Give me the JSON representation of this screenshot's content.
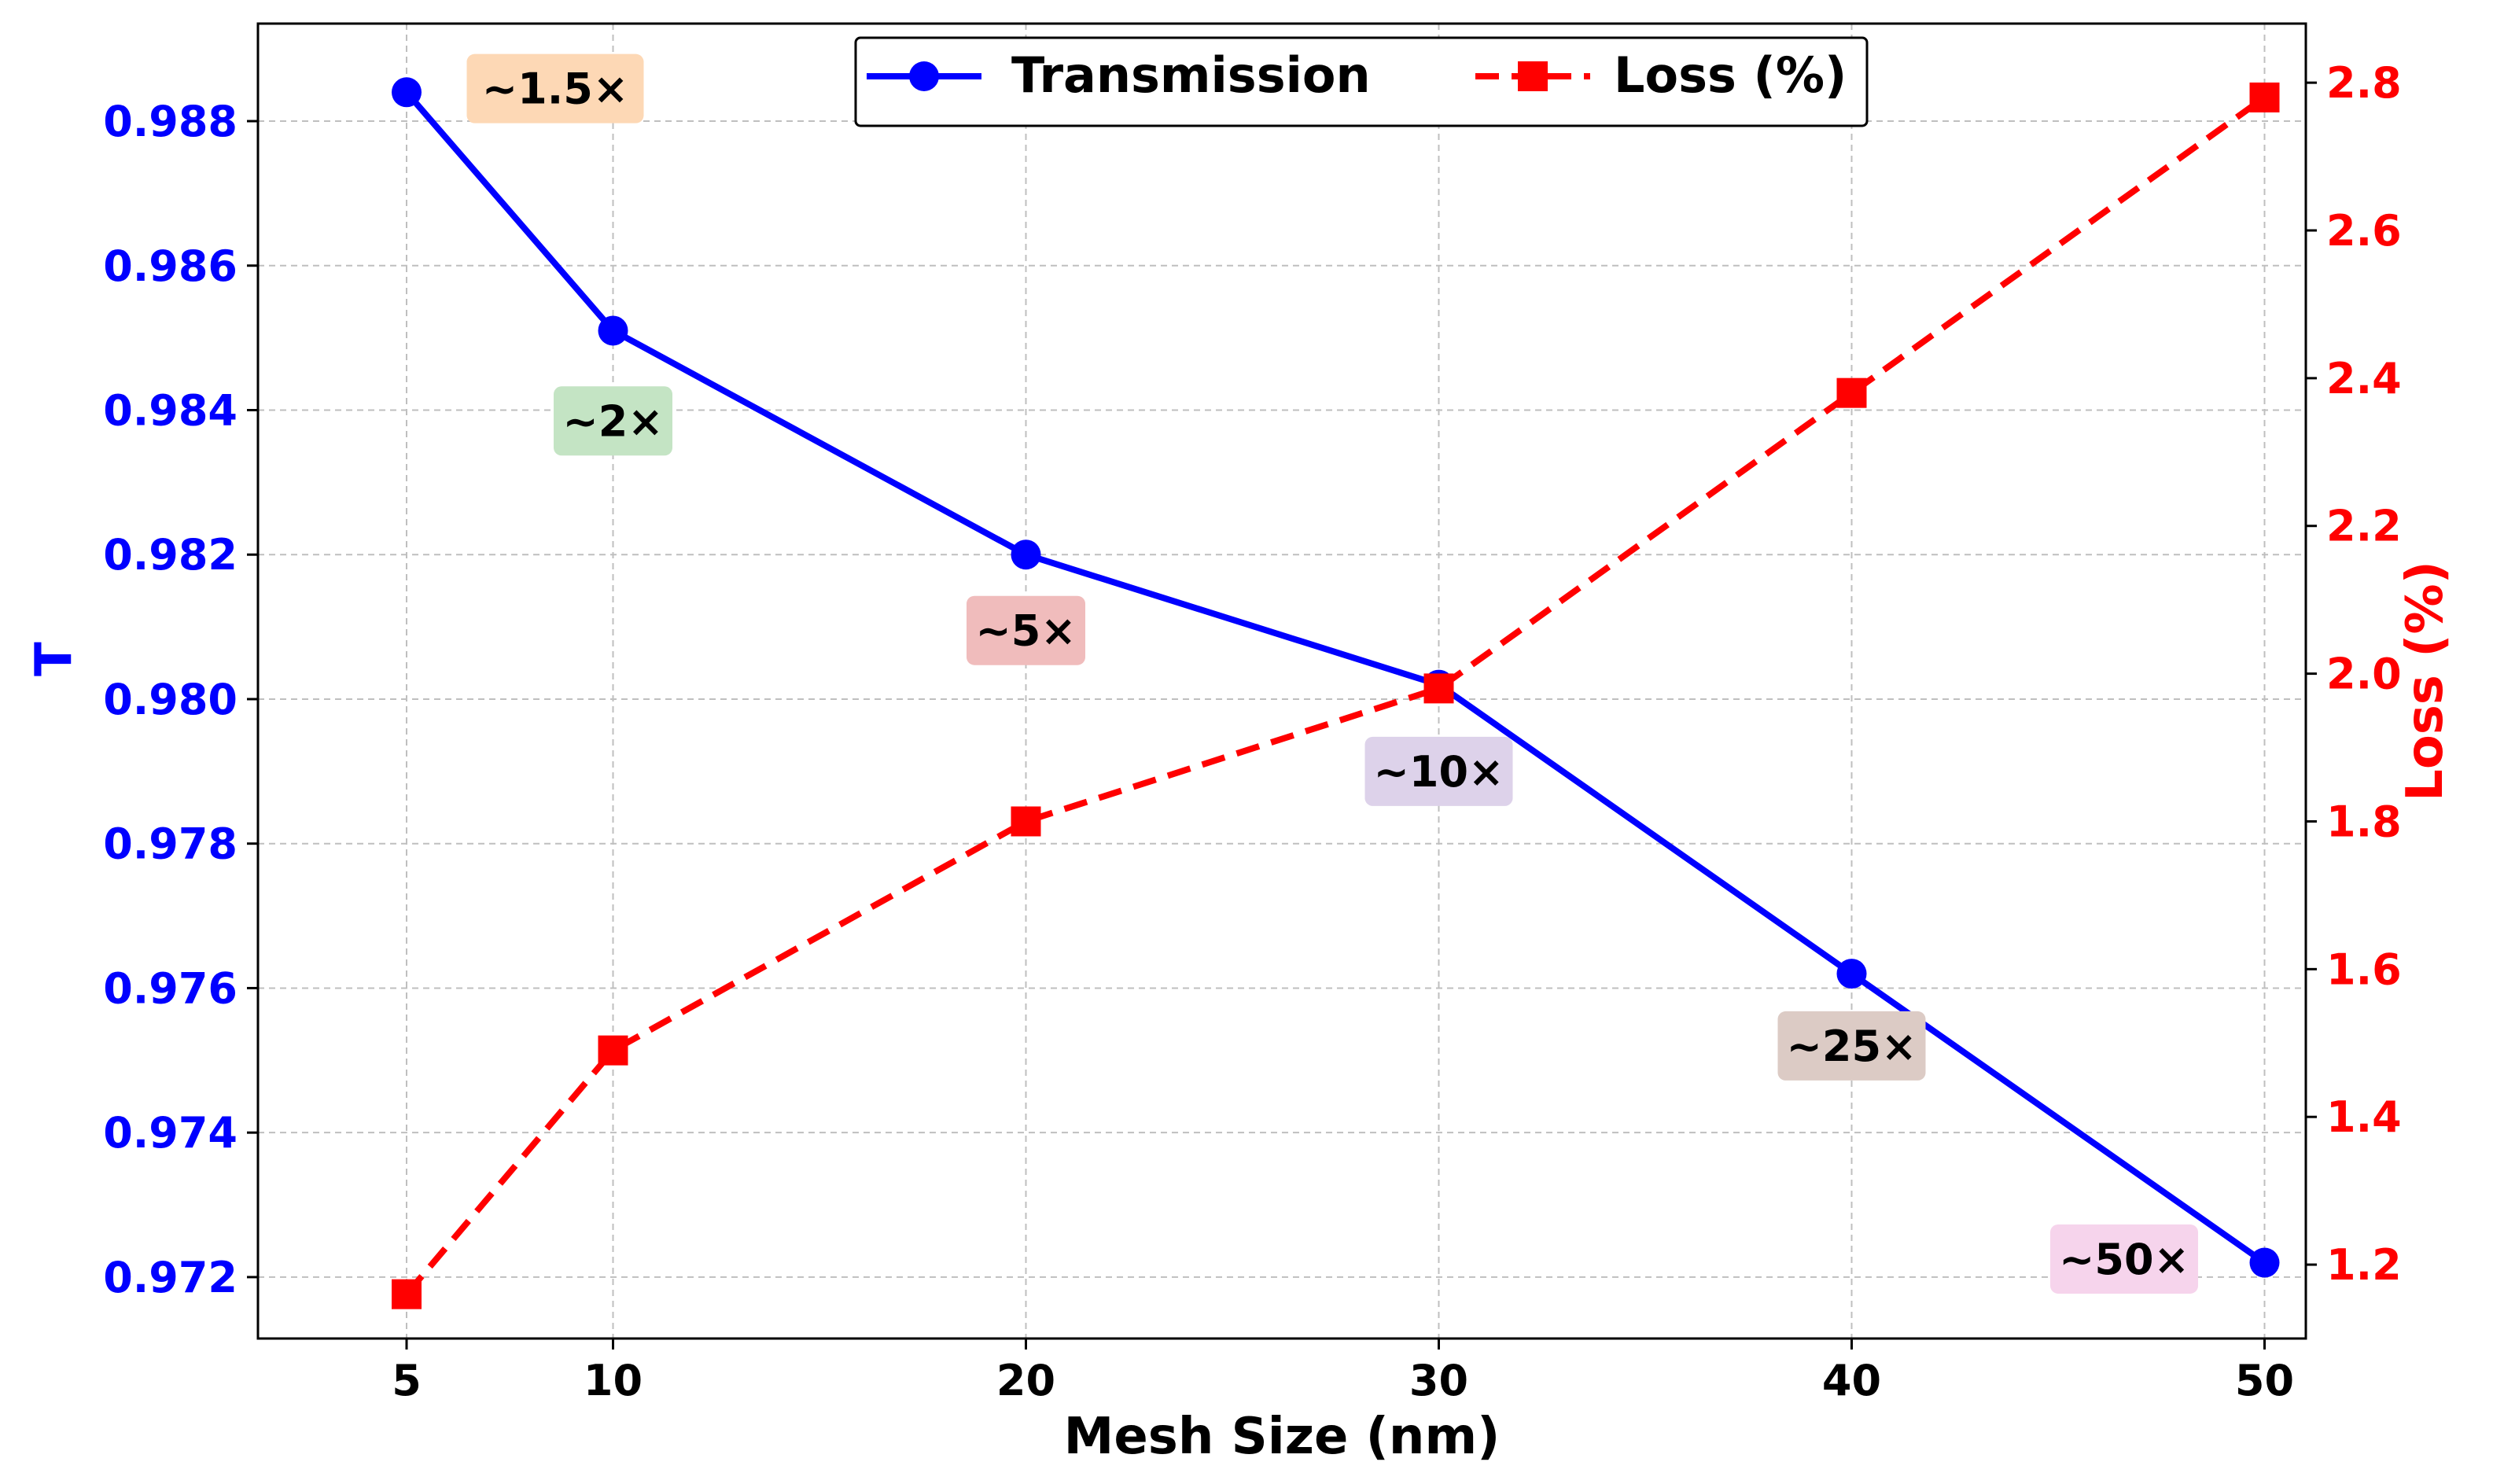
{
  "chart_data": {
    "type": "line",
    "x": [
      5,
      10,
      20,
      30,
      40,
      50
    ],
    "xticks": [
      "5",
      "10",
      "20",
      "30",
      "40",
      "50"
    ],
    "xlabel": "Mesh Size (nm)",
    "xlim": [
      1.4,
      51.0
    ],
    "grid": true,
    "legend": {
      "placement": "top-center"
    },
    "left_axis": {
      "label": "T",
      "color": "#0000ff",
      "lim": [
        0.97115,
        0.98935
      ],
      "ticks": [
        "0.972",
        "0.974",
        "0.976",
        "0.978",
        "0.980",
        "0.982",
        "0.984",
        "0.986",
        "0.988"
      ]
    },
    "right_axis": {
      "label": "Loss (%)",
      "color": "#ff0000",
      "lim": [
        1.1,
        2.88
      ],
      "ticks": [
        "1.2",
        "1.4",
        "1.6",
        "1.8",
        "2.0",
        "2.2",
        "2.4",
        "2.6",
        "2.8"
      ]
    },
    "series": [
      {
        "name": "Transmission",
        "axis": "left",
        "color": "#0000ff",
        "line_style": "solid",
        "marker": "circle",
        "values": [
          0.9884,
          0.9851,
          0.982,
          0.9802,
          0.9762,
          0.9722
        ]
      },
      {
        "name": "Loss (%)",
        "axis": "right",
        "color": "#ff0000",
        "line_style": "dashed",
        "marker": "square",
        "values": [
          1.16,
          1.49,
          1.8,
          1.98,
          2.38,
          2.78
        ]
      }
    ],
    "annotations": [
      {
        "text": "~1.5×",
        "x": 8.6,
        "y": 0.98845,
        "bg": "#fdd8b5"
      },
      {
        "text": "~2×",
        "x": 10.0,
        "y": 0.98385,
        "bg": "#c4e4c4"
      },
      {
        "text": "~5×",
        "x": 20.0,
        "y": 0.98095,
        "bg": "#f0bcbc"
      },
      {
        "text": "~10×",
        "x": 30.0,
        "y": 0.979,
        "bg": "#ddd2ea"
      },
      {
        "text": "~25×",
        "x": 40.0,
        "y": 0.9752,
        "bg": "#dccbc5"
      },
      {
        "text": "~50×",
        "x": 46.6,
        "y": 0.97225,
        "bg": "#f6d4ec"
      }
    ]
  }
}
